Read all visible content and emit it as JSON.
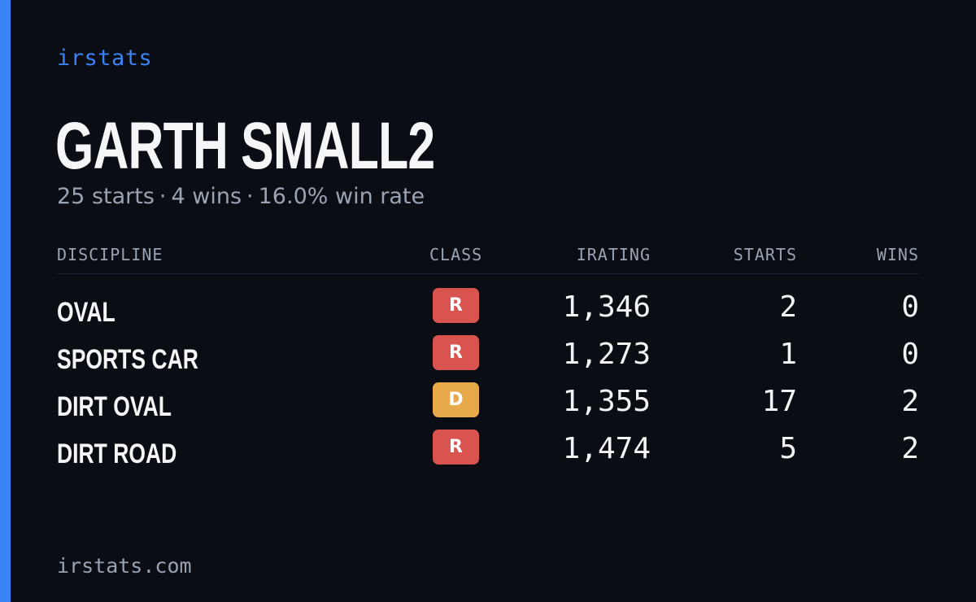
{
  "brand": "irstats",
  "driver": {
    "name": "GARTH SMALL2"
  },
  "summary": {
    "starts": "25 starts",
    "wins": "4 wins",
    "win_rate": "16.0% win rate",
    "separator": "·"
  },
  "table": {
    "headers": {
      "discipline": "DISCIPLINE",
      "class": "CLASS",
      "irating": "IRATING",
      "starts": "STARTS",
      "wins": "WINS"
    },
    "rows": [
      {
        "discipline": "OVAL",
        "class": "R",
        "irating": "1,346",
        "starts": "2",
        "wins": "0"
      },
      {
        "discipline": "SPORTS CAR",
        "class": "R",
        "irating": "1,273",
        "starts": "1",
        "wins": "0"
      },
      {
        "discipline": "DIRT OVAL",
        "class": "D",
        "irating": "1,355",
        "starts": "17",
        "wins": "2"
      },
      {
        "discipline": "DIRT ROAD",
        "class": "R",
        "irating": "1,474",
        "starts": "5",
        "wins": "2"
      }
    ]
  },
  "class_colors": {
    "R": "#d9534f",
    "D": "#e8a94a"
  },
  "colors": {
    "background": "#0b0d14",
    "accent": "#3b82f6",
    "muted_text": "#9aa3b2"
  },
  "footer": {
    "url": "irstats.com"
  }
}
